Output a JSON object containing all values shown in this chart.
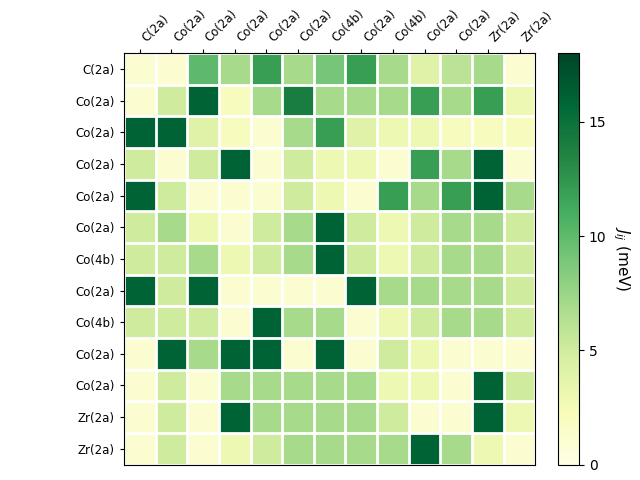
{
  "labels": [
    "C(2a)",
    "Co(2a)",
    "Co(2a)",
    "Co(2a)",
    "Co(2a)",
    "Co(2a)",
    "Co(4b)",
    "Co(2a)",
    "Co(4b)",
    "Co(2a)",
    "Co(2a)",
    "Zr(2a)",
    "Zr(2a)"
  ],
  "matrix": [
    [
      1,
      1,
      10,
      7,
      12,
      7,
      9,
      12,
      7,
      4,
      6,
      7,
      1
    ],
    [
      1,
      5,
      16,
      2,
      7,
      14,
      7,
      7,
      7,
      12,
      7,
      12,
      3
    ],
    [
      16,
      16,
      4,
      2,
      1,
      7,
      12,
      4,
      3,
      3,
      2,
      2,
      2
    ],
    [
      5,
      1,
      5,
      16,
      1,
      5,
      3,
      3,
      1,
      12,
      7,
      16,
      1
    ],
    [
      16,
      5,
      1,
      1,
      1,
      5,
      3,
      1,
      12,
      7,
      12,
      16,
      7
    ],
    [
      5,
      7,
      3,
      1,
      5,
      7,
      16,
      5,
      3,
      5,
      7,
      7,
      5
    ],
    [
      5,
      5,
      7,
      3,
      5,
      7,
      16,
      5,
      3,
      5,
      7,
      7,
      5
    ],
    [
      16,
      5,
      16,
      1,
      1,
      1,
      1,
      16,
      7,
      7,
      7,
      7,
      5
    ],
    [
      5,
      5,
      5,
      1,
      16,
      7,
      7,
      1,
      3,
      5,
      7,
      7,
      5
    ],
    [
      1,
      16,
      7,
      16,
      16,
      1,
      16,
      1,
      5,
      3,
      1,
      1,
      1
    ],
    [
      1,
      5,
      1,
      7,
      7,
      7,
      7,
      7,
      3,
      3,
      1,
      16,
      5
    ],
    [
      1,
      5,
      1,
      16,
      7,
      7,
      7,
      7,
      5,
      1,
      1,
      16,
      3
    ],
    [
      1,
      5,
      1,
      3,
      5,
      7,
      7,
      7,
      7,
      16,
      7,
      3,
      1
    ]
  ],
  "vmin": 0,
  "vmax": 18,
  "cmap": "YlGn",
  "colorbar_label": "$J_{ij}$ (meV)",
  "colorbar_ticks": [
    0,
    5,
    10,
    15
  ],
  "figsize": [
    6.4,
    4.8
  ],
  "dpi": 100
}
